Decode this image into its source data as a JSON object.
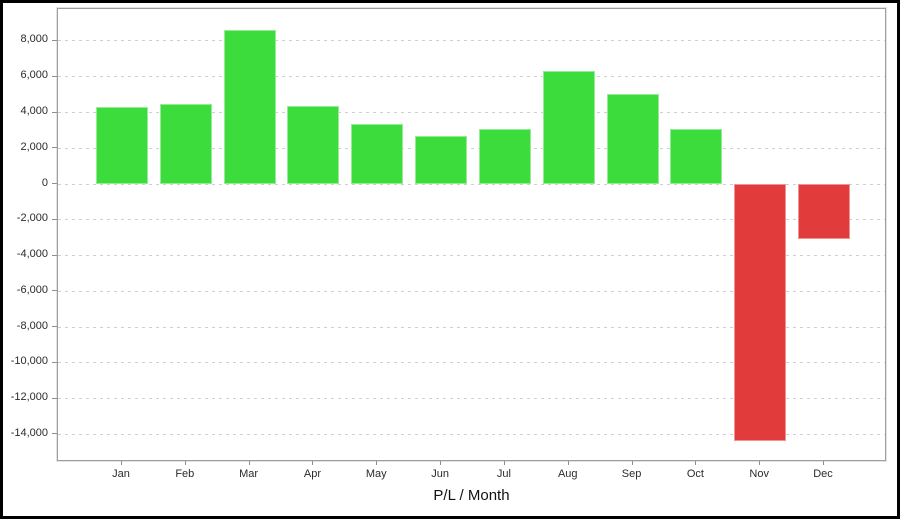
{
  "window": {
    "background_color": "#ffffff",
    "frame_border_color": "#000000"
  },
  "chart_data": {
    "type": "bar",
    "title": "P/L / Month",
    "xlabel": "P/L / Month",
    "ylabel": "",
    "legend": "none",
    "grid": "horizontal-dashed",
    "categories": [
      "Jan",
      "Feb",
      "Mar",
      "Apr",
      "May",
      "Jun",
      "Jul",
      "Aug",
      "Sep",
      "Oct",
      "Nov",
      "Dec"
    ],
    "values": [
      4300,
      4450,
      8600,
      4350,
      3350,
      2700,
      3050,
      6300,
      5050,
      3050,
      -14400,
      -3050
    ],
    "positive_color": "#3cdc3c",
    "negative_color": "#e23b3b",
    "gridline_color": "#cfcfcf",
    "axis_border_color": "#9e9e9e",
    "tick_label_color": "#2b2b2b",
    "ylim": [
      -15550,
      9790
    ],
    "y_ticks": [
      {
        "value": 8000,
        "label": "8,000"
      },
      {
        "value": 6000,
        "label": "6,000"
      },
      {
        "value": 4000,
        "label": "4,000"
      },
      {
        "value": 2000,
        "label": "2,000"
      },
      {
        "value": 0,
        "label": "0"
      },
      {
        "value": -2000,
        "label": "-2,000"
      },
      {
        "value": -4000,
        "label": "-4,000"
      },
      {
        "value": -6000,
        "label": "-6,000"
      },
      {
        "value": -8000,
        "label": "-8,000"
      },
      {
        "value": -10000,
        "label": "-10,000"
      },
      {
        "value": -12000,
        "label": "-12,000"
      },
      {
        "value": -14000,
        "label": "-14,000"
      }
    ]
  }
}
